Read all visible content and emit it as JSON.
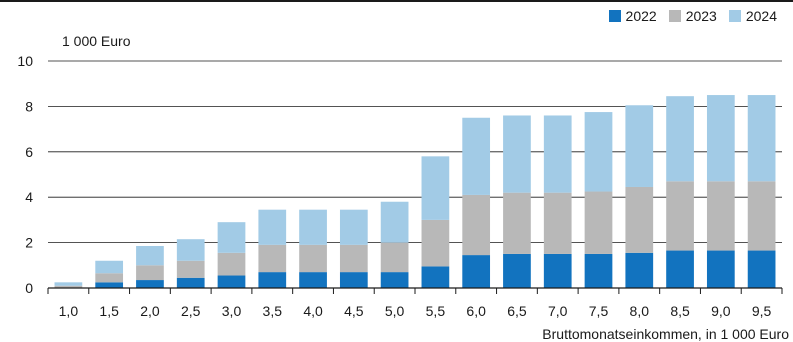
{
  "chart_data": {
    "type": "bar",
    "stacked": true,
    "unit_label": "1 000 Euro",
    "xlabel": "Bruttomonatseinkommen, in 1 000 Euro",
    "ylabel": "",
    "ylim": [
      0,
      10
    ],
    "yticks": [
      "0",
      "2",
      "4",
      "6",
      "8",
      "10"
    ],
    "grid": true,
    "legend_position": "top-right",
    "categories": [
      "1,0",
      "1,5",
      "2,0",
      "2,5",
      "3,0",
      "3,5",
      "4,0",
      "4,5",
      "5,0",
      "5,5",
      "6,0",
      "6,5",
      "7,0",
      "7,5",
      "8,0",
      "8,5",
      "9,0",
      "9,5"
    ],
    "series": [
      {
        "name": "2022",
        "color": "#1273bf",
        "values": [
          0.0,
          0.25,
          0.35,
          0.45,
          0.55,
          0.7,
          0.7,
          0.7,
          0.7,
          0.95,
          1.45,
          1.5,
          1.5,
          1.5,
          1.55,
          1.65,
          1.65,
          1.65
        ]
      },
      {
        "name": "2023",
        "color": "#b8b8b8",
        "values": [
          0.1,
          0.4,
          0.65,
          0.75,
          1.0,
          1.2,
          1.2,
          1.2,
          1.3,
          2.05,
          2.65,
          2.7,
          2.7,
          2.75,
          2.9,
          3.05,
          3.05,
          3.05
        ]
      },
      {
        "name": "2024",
        "color": "#a2cbe6",
        "values": [
          0.15,
          0.55,
          0.85,
          0.95,
          1.35,
          1.55,
          1.55,
          1.55,
          1.8,
          2.8,
          3.4,
          3.4,
          3.4,
          3.5,
          3.6,
          3.75,
          3.8,
          3.8
        ]
      }
    ]
  }
}
